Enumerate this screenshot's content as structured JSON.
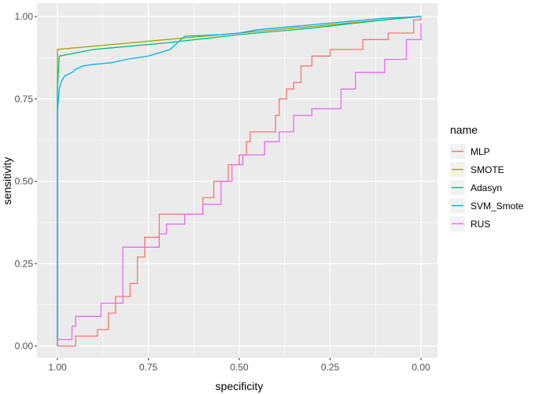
{
  "chart_data": {
    "type": "line",
    "xlabel": "specificity",
    "ylabel": "sensitivity",
    "xlim": [
      1.0,
      0.0
    ],
    "ylim": [
      0.0,
      1.0
    ],
    "x_reversed": true,
    "x_ticks": [
      "1.00",
      "0.75",
      "0.50",
      "0.25",
      "0.00"
    ],
    "y_ticks": [
      "0.00",
      "0.25",
      "0.50",
      "0.75",
      "1.00"
    ],
    "grid": true,
    "legend_title": "name",
    "legend_position": "right",
    "series": [
      {
        "name": "MLP",
        "color": "#F8766D",
        "points": [
          [
            1.0,
            0.0
          ],
          [
            1.0,
            0.0
          ],
          [
            0.95,
            0.0
          ],
          [
            0.95,
            0.03
          ],
          [
            0.89,
            0.03
          ],
          [
            0.89,
            0.05
          ],
          [
            0.86,
            0.05
          ],
          [
            0.86,
            0.1
          ],
          [
            0.84,
            0.1
          ],
          [
            0.84,
            0.15
          ],
          [
            0.8,
            0.15
          ],
          [
            0.8,
            0.19
          ],
          [
            0.78,
            0.19
          ],
          [
            0.78,
            0.27
          ],
          [
            0.76,
            0.27
          ],
          [
            0.76,
            0.33
          ],
          [
            0.72,
            0.33
          ],
          [
            0.72,
            0.4
          ],
          [
            0.6,
            0.4
          ],
          [
            0.6,
            0.45
          ],
          [
            0.57,
            0.45
          ],
          [
            0.57,
            0.5
          ],
          [
            0.53,
            0.5
          ],
          [
            0.53,
            0.55
          ],
          [
            0.5,
            0.55
          ],
          [
            0.5,
            0.58
          ],
          [
            0.48,
            0.58
          ],
          [
            0.48,
            0.62
          ],
          [
            0.47,
            0.62
          ],
          [
            0.47,
            0.65
          ],
          [
            0.4,
            0.65
          ],
          [
            0.4,
            0.7
          ],
          [
            0.39,
            0.7
          ],
          [
            0.39,
            0.75
          ],
          [
            0.37,
            0.75
          ],
          [
            0.37,
            0.78
          ],
          [
            0.35,
            0.78
          ],
          [
            0.35,
            0.8
          ],
          [
            0.33,
            0.8
          ],
          [
            0.33,
            0.85
          ],
          [
            0.3,
            0.85
          ],
          [
            0.3,
            0.88
          ],
          [
            0.25,
            0.88
          ],
          [
            0.25,
            0.9
          ],
          [
            0.16,
            0.9
          ],
          [
            0.16,
            0.93
          ],
          [
            0.09,
            0.93
          ],
          [
            0.09,
            0.95
          ],
          [
            0.02,
            0.95
          ],
          [
            0.02,
            0.99
          ],
          [
            0.0,
            0.99
          ],
          [
            0.0,
            1.0
          ]
        ]
      },
      {
        "name": "SMOTE",
        "color": "#A3A500",
        "points": [
          [
            1.0,
            0.0
          ],
          [
            1.0,
            0.9
          ],
          [
            0.9,
            0.91
          ],
          [
            0.7,
            0.93
          ],
          [
            0.5,
            0.95
          ],
          [
            0.3,
            0.97
          ],
          [
            0.1,
            0.99
          ],
          [
            0.0,
            1.0
          ]
        ]
      },
      {
        "name": "Adasyn",
        "color": "#00BF7D",
        "points": [
          [
            1.0,
            0.0
          ],
          [
            1.0,
            0.78
          ],
          [
            0.995,
            0.88
          ],
          [
            0.9,
            0.9
          ],
          [
            0.7,
            0.92
          ],
          [
            0.5,
            0.945
          ],
          [
            0.3,
            0.965
          ],
          [
            0.1,
            0.99
          ],
          [
            0.0,
            1.0
          ]
        ]
      },
      {
        "name": "SVM_Smote",
        "color": "#00B0F6",
        "points": [
          [
            1.0,
            0.0
          ],
          [
            1.0,
            0.71
          ],
          [
            0.995,
            0.78
          ],
          [
            0.99,
            0.8
          ],
          [
            0.98,
            0.82
          ],
          [
            0.96,
            0.83
          ],
          [
            0.95,
            0.84
          ],
          [
            0.93,
            0.85
          ],
          [
            0.9,
            0.855
          ],
          [
            0.85,
            0.86
          ],
          [
            0.81,
            0.87
          ],
          [
            0.78,
            0.875
          ],
          [
            0.75,
            0.88
          ],
          [
            0.72,
            0.89
          ],
          [
            0.69,
            0.9
          ],
          [
            0.67,
            0.92
          ],
          [
            0.65,
            0.94
          ],
          [
            0.55,
            0.945
          ],
          [
            0.5,
            0.95
          ],
          [
            0.45,
            0.96
          ],
          [
            0.4,
            0.965
          ],
          [
            0.3,
            0.975
          ],
          [
            0.2,
            0.985
          ],
          [
            0.1,
            0.995
          ],
          [
            0.0,
            1.0
          ]
        ]
      },
      {
        "name": "RUS",
        "color": "#E76BF3",
        "points": [
          [
            1.0,
            0.0
          ],
          [
            1.0,
            0.02
          ],
          [
            0.96,
            0.02
          ],
          [
            0.96,
            0.06
          ],
          [
            0.95,
            0.06
          ],
          [
            0.95,
            0.09
          ],
          [
            0.88,
            0.09
          ],
          [
            0.88,
            0.13
          ],
          [
            0.82,
            0.13
          ],
          [
            0.82,
            0.3
          ],
          [
            0.72,
            0.3
          ],
          [
            0.72,
            0.34
          ],
          [
            0.7,
            0.34
          ],
          [
            0.7,
            0.37
          ],
          [
            0.65,
            0.37
          ],
          [
            0.65,
            0.4
          ],
          [
            0.6,
            0.4
          ],
          [
            0.6,
            0.43
          ],
          [
            0.55,
            0.43
          ],
          [
            0.55,
            0.5
          ],
          [
            0.52,
            0.5
          ],
          [
            0.52,
            0.55
          ],
          [
            0.51,
            0.55
          ],
          [
            0.51,
            0.55
          ],
          [
            0.49,
            0.55
          ],
          [
            0.49,
            0.58
          ],
          [
            0.43,
            0.58
          ],
          [
            0.43,
            0.62
          ],
          [
            0.39,
            0.62
          ],
          [
            0.39,
            0.65
          ],
          [
            0.35,
            0.65
          ],
          [
            0.35,
            0.7
          ],
          [
            0.3,
            0.7
          ],
          [
            0.3,
            0.72
          ],
          [
            0.22,
            0.72
          ],
          [
            0.22,
            0.78
          ],
          [
            0.18,
            0.78
          ],
          [
            0.18,
            0.83
          ],
          [
            0.1,
            0.83
          ],
          [
            0.1,
            0.87
          ],
          [
            0.04,
            0.87
          ],
          [
            0.04,
            0.93
          ],
          [
            0.0,
            0.93
          ],
          [
            0.0,
            0.98
          ]
        ]
      }
    ]
  }
}
